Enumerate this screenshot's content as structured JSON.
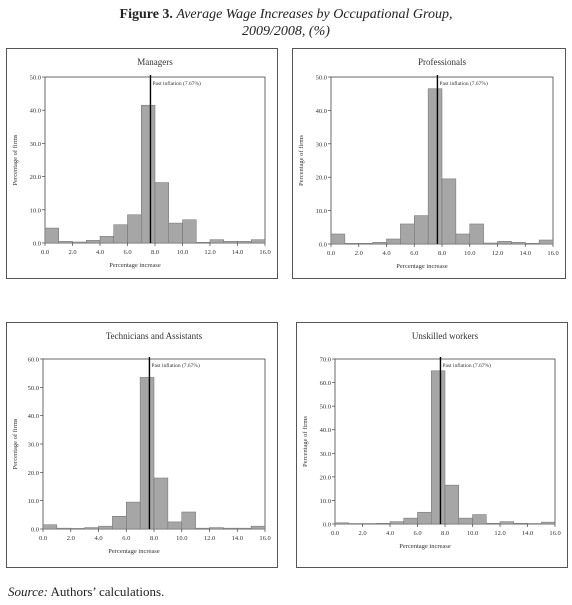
{
  "figure": {
    "label": "Figure 3.",
    "title_line1": "Average Wage Increases by Occupational Group,",
    "title_line2": "2009/2008, (%)"
  },
  "source": {
    "label": "Source:",
    "text": "Authors’ calculations."
  },
  "colors": {
    "bar": "#a6a6a6",
    "bar_stroke": "#6e6e6e",
    "plot_border": "#444444",
    "inflation_line": "#000000"
  },
  "chart_data": [
    {
      "type": "bar",
      "title": "Managers",
      "xlabel": "Percentage increase",
      "ylabel": "Percentage of firms",
      "xlim": [
        0,
        16
      ],
      "ylim": [
        0,
        50
      ],
      "xticks": [
        "0.0",
        "2.0",
        "4.0",
        "6.0",
        "8.0",
        "10.0",
        "12.0",
        "14.0",
        "16.0"
      ],
      "yticks": [
        "0.0",
        "10.0",
        "20.0",
        "30.0",
        "40.0",
        "50.0"
      ],
      "bin_width": 1,
      "bin_starts": [
        0,
        1,
        2,
        3,
        4,
        5,
        6,
        7,
        8,
        9,
        10,
        11,
        12,
        13,
        14,
        15
      ],
      "values": [
        4.5,
        0.5,
        0.3,
        0.8,
        2.0,
        5.5,
        8.5,
        41.5,
        18.2,
        6.0,
        7.0,
        0.2,
        1.0,
        0.5,
        0.5,
        1.0
      ],
      "annotation": {
        "x": 7.67,
        "label": "Past inflation (7.67%)"
      }
    },
    {
      "type": "bar",
      "title": "Professionals",
      "xlabel": "Percentage increase",
      "ylabel": "Percentage of firms",
      "xlim": [
        0,
        16
      ],
      "ylim": [
        0,
        50
      ],
      "xticks": [
        "0.0",
        "2.0",
        "4.0",
        "6.0",
        "8.0",
        "10.0",
        "12.0",
        "14.0",
        "16.0"
      ],
      "yticks": [
        "0.0",
        "10.0",
        "20.0",
        "30.0",
        "40.0",
        "50.0"
      ],
      "bin_width": 1,
      "bin_starts": [
        0,
        1,
        2,
        3,
        4,
        5,
        6,
        7,
        8,
        9,
        10,
        11,
        12,
        13,
        14,
        15
      ],
      "values": [
        3.0,
        0.2,
        0.2,
        0.5,
        1.5,
        6.0,
        8.5,
        46.5,
        19.5,
        3.0,
        6.0,
        0.3,
        0.8,
        0.5,
        0.2,
        1.2
      ],
      "annotation": {
        "x": 7.67,
        "label": "Past inflation (7.67%)"
      }
    },
    {
      "type": "bar",
      "title": "Technicians and Assistants",
      "xlabel": "Percentage increase",
      "ylabel": "Percentage of firms",
      "xlim": [
        0,
        16
      ],
      "ylim": [
        0,
        60
      ],
      "xticks": [
        "0.0",
        "2.0",
        "4.0",
        "6.0",
        "8.0",
        "10.0",
        "12.0",
        "14.0",
        "16.0"
      ],
      "yticks": [
        "0.0",
        "10.0",
        "20.0",
        "30.0",
        "40.0",
        "50.0",
        "60.0"
      ],
      "bin_width": 1,
      "bin_starts": [
        0,
        1,
        2,
        3,
        4,
        5,
        6,
        7,
        8,
        9,
        10,
        11,
        12,
        13,
        14,
        15
      ],
      "values": [
        1.5,
        0.3,
        0.2,
        0.5,
        1.0,
        4.5,
        9.5,
        53.5,
        18.0,
        2.5,
        6.0,
        0.3,
        0.5,
        0.3,
        0.3,
        1.0
      ],
      "annotation": {
        "x": 7.67,
        "label": "Past inflation (7.67%)"
      }
    },
    {
      "type": "bar",
      "title": "Unskilled workers",
      "xlabel": "Percentage increase",
      "ylabel": "Percentage of firms",
      "xlim": [
        0,
        16
      ],
      "ylim": [
        0,
        70
      ],
      "xticks": [
        "0.0",
        "2.0",
        "4.0",
        "6.0",
        "8.0",
        "10.0",
        "12.0",
        "14.0",
        "16.0"
      ],
      "yticks": [
        "0.0",
        "10.0",
        "20.0",
        "30.0",
        "40.0",
        "50.0",
        "60.0",
        "70.0"
      ],
      "bin_width": 1,
      "bin_starts": [
        0,
        1,
        2,
        3,
        4,
        5,
        6,
        7,
        8,
        9,
        10,
        11,
        12,
        13,
        14,
        15
      ],
      "values": [
        0.5,
        0.2,
        0.2,
        0.3,
        1.0,
        2.5,
        5.0,
        65.0,
        16.5,
        2.5,
        4.0,
        0.3,
        1.0,
        0.3,
        0.2,
        0.8
      ],
      "annotation": {
        "x": 7.67,
        "label": "Past inflation (7.67%)"
      }
    }
  ]
}
